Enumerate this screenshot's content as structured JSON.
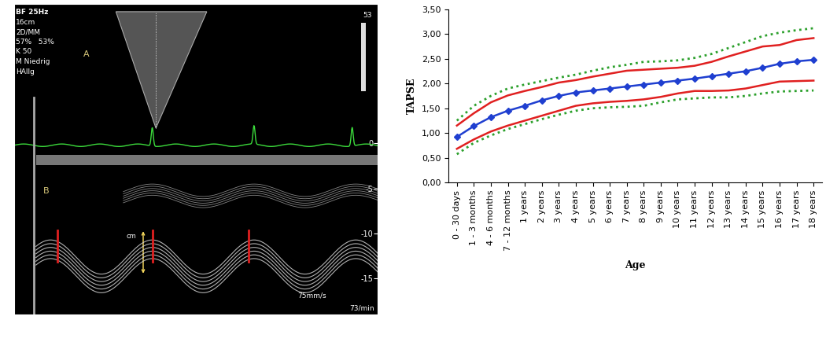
{
  "chart_data": [
    {
      "type": "image",
      "header_lines": [
        "BF 25Hz",
        "16cm",
        "2D/MM",
        "57%   53%",
        "K 50",
        "M Niedrig",
        "HAllg"
      ],
      "panel_labels": [
        "A",
        "B"
      ],
      "scale_max": 53,
      "measure_label": "cm",
      "sweep_speed": "75mm/s",
      "heart_rate": "73/min",
      "ylim": [
        -19,
        15.5
      ],
      "yticks": [
        0,
        -5,
        -10,
        -15
      ],
      "tick_labels": "y"
    },
    {
      "type": "line",
      "xlabel": "Age",
      "ylabel": "TAPSE",
      "categories": [
        "0 - 30 days",
        "1 - 3 months",
        "4 - 6 months",
        "7 - 12 months",
        "1 years",
        "2 years",
        "3 years",
        "4 years",
        "5 years",
        "6 years",
        "7 years",
        "8 years",
        "9 years",
        "10 years",
        "11 years",
        "12 years",
        "13 years",
        "14 years",
        "15 years",
        "16 years",
        "17 years",
        "18 years"
      ],
      "series": [
        {
          "color": "#2ca02c",
          "line_style": "dotted",
          "marker": "none",
          "values": [
            1.25,
            1.55,
            1.75,
            1.9,
            1.98,
            2.05,
            2.12,
            2.18,
            2.26,
            2.33,
            2.38,
            2.44,
            2.45,
            2.47,
            2.52,
            2.6,
            2.72,
            2.84,
            2.96,
            3.03,
            3.08,
            3.12
          ]
        },
        {
          "color": "#e02020",
          "line_style": "solid",
          "marker": "none",
          "values": [
            1.15,
            1.4,
            1.62,
            1.76,
            1.85,
            1.93,
            2.02,
            2.07,
            2.14,
            2.2,
            2.26,
            2.28,
            2.3,
            2.32,
            2.36,
            2.44,
            2.55,
            2.65,
            2.75,
            2.78,
            2.88,
            2.92
          ]
        },
        {
          "color": "#1f3fd0",
          "line_style": "solid",
          "marker": "diamond",
          "values": [
            0.92,
            1.14,
            1.32,
            1.45,
            1.55,
            1.66,
            1.75,
            1.82,
            1.86,
            1.9,
            1.94,
            1.98,
            2.02,
            2.06,
            2.1,
            2.15,
            2.2,
            2.25,
            2.32,
            2.4,
            2.45,
            2.48
          ]
        },
        {
          "color": "#e02020",
          "line_style": "solid",
          "marker": "none",
          "values": [
            0.68,
            0.87,
            1.03,
            1.15,
            1.25,
            1.35,
            1.45,
            1.55,
            1.6,
            1.63,
            1.65,
            1.68,
            1.73,
            1.8,
            1.85,
            1.85,
            1.86,
            1.9,
            1.97,
            2.04,
            2.05,
            2.06
          ]
        },
        {
          "color": "#2ca02c",
          "line_style": "dotted",
          "marker": "none",
          "values": [
            0.57,
            0.8,
            0.95,
            1.08,
            1.18,
            1.28,
            1.37,
            1.45,
            1.5,
            1.52,
            1.53,
            1.55,
            1.62,
            1.68,
            1.7,
            1.72,
            1.72,
            1.75,
            1.8,
            1.84,
            1.85,
            1.86
          ]
        }
      ],
      "ylim": [
        0,
        3.5
      ],
      "yticks": [
        {
          "value": 0,
          "label": "0,00"
        },
        {
          "value": 0.5,
          "label": "0,50"
        },
        {
          "value": 1,
          "label": "1,00"
        },
        {
          "value": 1.5,
          "label": "1,50"
        },
        {
          "value": 2,
          "label": "2,00"
        },
        {
          "value": 2.5,
          "label": "2,50"
        },
        {
          "value": 3,
          "label": "3,00"
        },
        {
          "value": 3.5,
          "label": "3,50"
        }
      ],
      "grid": false
    }
  ]
}
